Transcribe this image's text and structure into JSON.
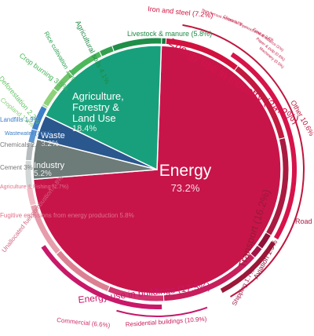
{
  "chart_data": {
    "type": "pie",
    "center_slices": [
      {
        "label": "Energy",
        "value_text": "73.2%",
        "value": 73.2,
        "color": "#c7154a"
      },
      {
        "label": "Industry",
        "value_text": "5.2%",
        "value": 5.2,
        "color": "#6d7b79"
      },
      {
        "label": "Waste",
        "value_text": "3.2%",
        "value": 3.2,
        "color": "#2a578d"
      },
      {
        "label": "Agriculture,|Forestry &|Land Use",
        "value_text": "18.4%",
        "value": 18.4,
        "color": "#18a07c"
      }
    ],
    "ring_segments": [
      {
        "label": "Livestock & manure (5.8%)",
        "value": 5.8,
        "color": "#137a3e"
      },
      {
        "label": "Agricultural soils 4.1%",
        "value": 4.1,
        "color": "#1f8e49"
      },
      {
        "label": "Rice cultivation 1.3%",
        "value": 1.3,
        "color": "#32a04f"
      },
      {
        "label": "Crop burning 3.5%",
        "value": 3.5,
        "color": "#4cb85b"
      },
      {
        "label": "Deforestation 2.2%",
        "value": 2.2,
        "color": "#6ec46a"
      },
      {
        "label": "Cropland 1.4%",
        "value": 1.4,
        "color": "#8ed27a"
      },
      {
        "label": "Grassland 0.1%",
        "value": 0.1,
        "color": "#9fd98a"
      },
      {
        "label": "Landfills 1.9%",
        "value": 1.9,
        "color": "#3d7fc7"
      },
      {
        "label": "Wastewater (1.3%)",
        "value": 1.3,
        "color": "#5d98d5"
      },
      {
        "label": "Chemicals 2.2%",
        "value": 2.2,
        "color": "#b7bdbe"
      },
      {
        "label": "Cement 3%",
        "value": 3.0,
        "color": "#d1d6d6"
      },
      {
        "label": "Agriculture & Fishing (1.7%)",
        "value": 1.7,
        "color": "#f2bcc6"
      },
      {
        "label": "Fugitive emissions from energy production 5.8%",
        "value": 5.8,
        "color": "#e79cab"
      },
      {
        "label": "Unallocated fuel combustion 7.8%",
        "value": 7.8,
        "color": "#dd7f92"
      },
      {
        "label": "Commercial (6.6%)",
        "value": 6.6,
        "color": "#d0336d"
      },
      {
        "label": "Residential buildings (10.9%)",
        "value": 10.9,
        "color": "#c61f5c"
      },
      {
        "label": "Shipping 1.7%",
        "value": 1.7,
        "color": "#a31446"
      },
      {
        "label": "Aviation 1.9%",
        "value": 1.9,
        "color": "#8f1238"
      },
      {
        "label": "Road 11.9%",
        "value": 11.9,
        "color": "#aa1a40"
      },
      {
        "label": "Other 10.6%",
        "value": 10.6,
        "color": "#c2193f"
      },
      {
        "label": "Iron and steel (7.2%)",
        "value": 7.2,
        "color": "#d1123e"
      }
    ],
    "groups": [
      {
        "label": "Energy use in Industry (24.2%)",
        "color": "#d6134a"
      },
      {
        "label": "Transport (16.2%)",
        "color": "#9a1838"
      },
      {
        "label": "Energy use in buildings (17.5%)",
        "color": "#c8186a"
      }
    ],
    "small_labels": [
      {
        "label": "Non-ferrous metals 0.7%"
      },
      {
        "label": "Chemical & petrochemical 3.6%"
      },
      {
        "label": "Food & tobacco (1%)"
      },
      {
        "label": "Paper & pulp (0.6%)"
      },
      {
        "label": "Machinery (0.5%)"
      }
    ]
  }
}
